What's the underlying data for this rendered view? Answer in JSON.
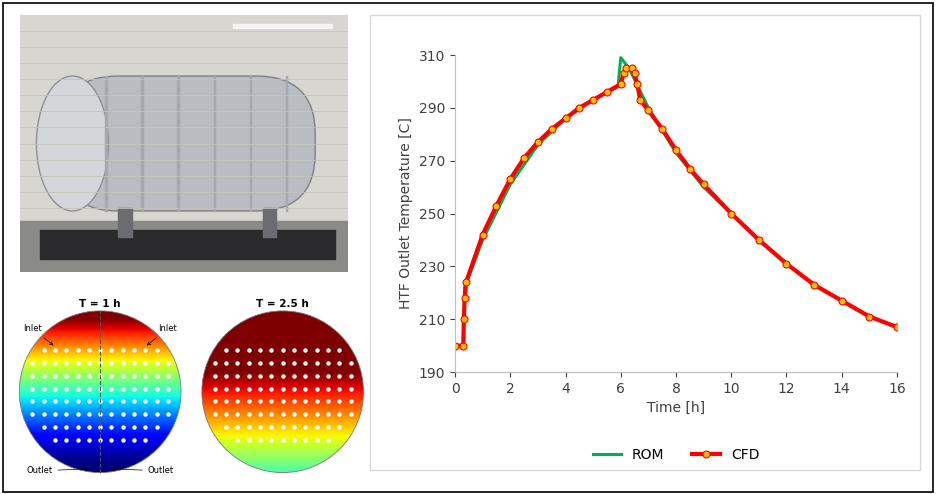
{
  "chart_data": {
    "type": "line",
    "xlabel": "Time [h]",
    "ylabel": "HTF Outlet Temperature [C]",
    "xlim": [
      0,
      16
    ],
    "xticks": [
      0,
      2,
      4,
      6,
      8,
      10,
      12,
      14,
      16
    ],
    "ylim": [
      190,
      310
    ],
    "yticks": [
      190,
      210,
      230,
      250,
      270,
      290,
      310
    ],
    "grid": false,
    "legend": "lower center",
    "series": [
      {
        "name": "ROM",
        "color": "#00b050",
        "line_style": "solid",
        "x": [
          0,
          0.3,
          0.35,
          0.5,
          1,
          2,
          3,
          4,
          5,
          5.9,
          6.0,
          6.3,
          7,
          8,
          9,
          10,
          11,
          12,
          13,
          14,
          15,
          16
        ],
        "values": [
          200,
          200,
          222,
          226,
          240,
          261,
          276,
          286,
          293,
          298,
          309,
          305,
          290,
          273,
          260,
          250,
          240,
          231,
          223,
          217,
          211,
          207
        ]
      },
      {
        "name": "CFD",
        "color": "#ff0000",
        "marker": "o",
        "line_style": "solid",
        "x": [
          0,
          0.3,
          0.32,
          0.35,
          0.4,
          1,
          1.5,
          2,
          2.5,
          3,
          3.5,
          4,
          4.5,
          5,
          5.5,
          6,
          6.1,
          6.2,
          6.4,
          6.5,
          6.6,
          6.7,
          7,
          7.5,
          8,
          8.5,
          9,
          10,
          11,
          12,
          13,
          14,
          15,
          16
        ],
        "values": [
          200,
          200,
          210,
          218,
          224,
          242,
          253,
          263,
          271,
          277,
          282,
          286,
          290,
          293,
          296,
          299,
          303,
          305,
          305,
          303,
          299,
          293,
          289,
          282,
          274,
          267,
          261,
          250,
          240,
          231,
          223,
          217,
          211,
          207
        ]
      }
    ]
  },
  "contour_panels": [
    {
      "title": "T = 1 h",
      "inlet_labels": [
        "Inlet",
        "Inlet"
      ],
      "outlet_labels": [
        "Outlet",
        "Outlet"
      ]
    },
    {
      "title": "T = 2.5 h"
    }
  ]
}
